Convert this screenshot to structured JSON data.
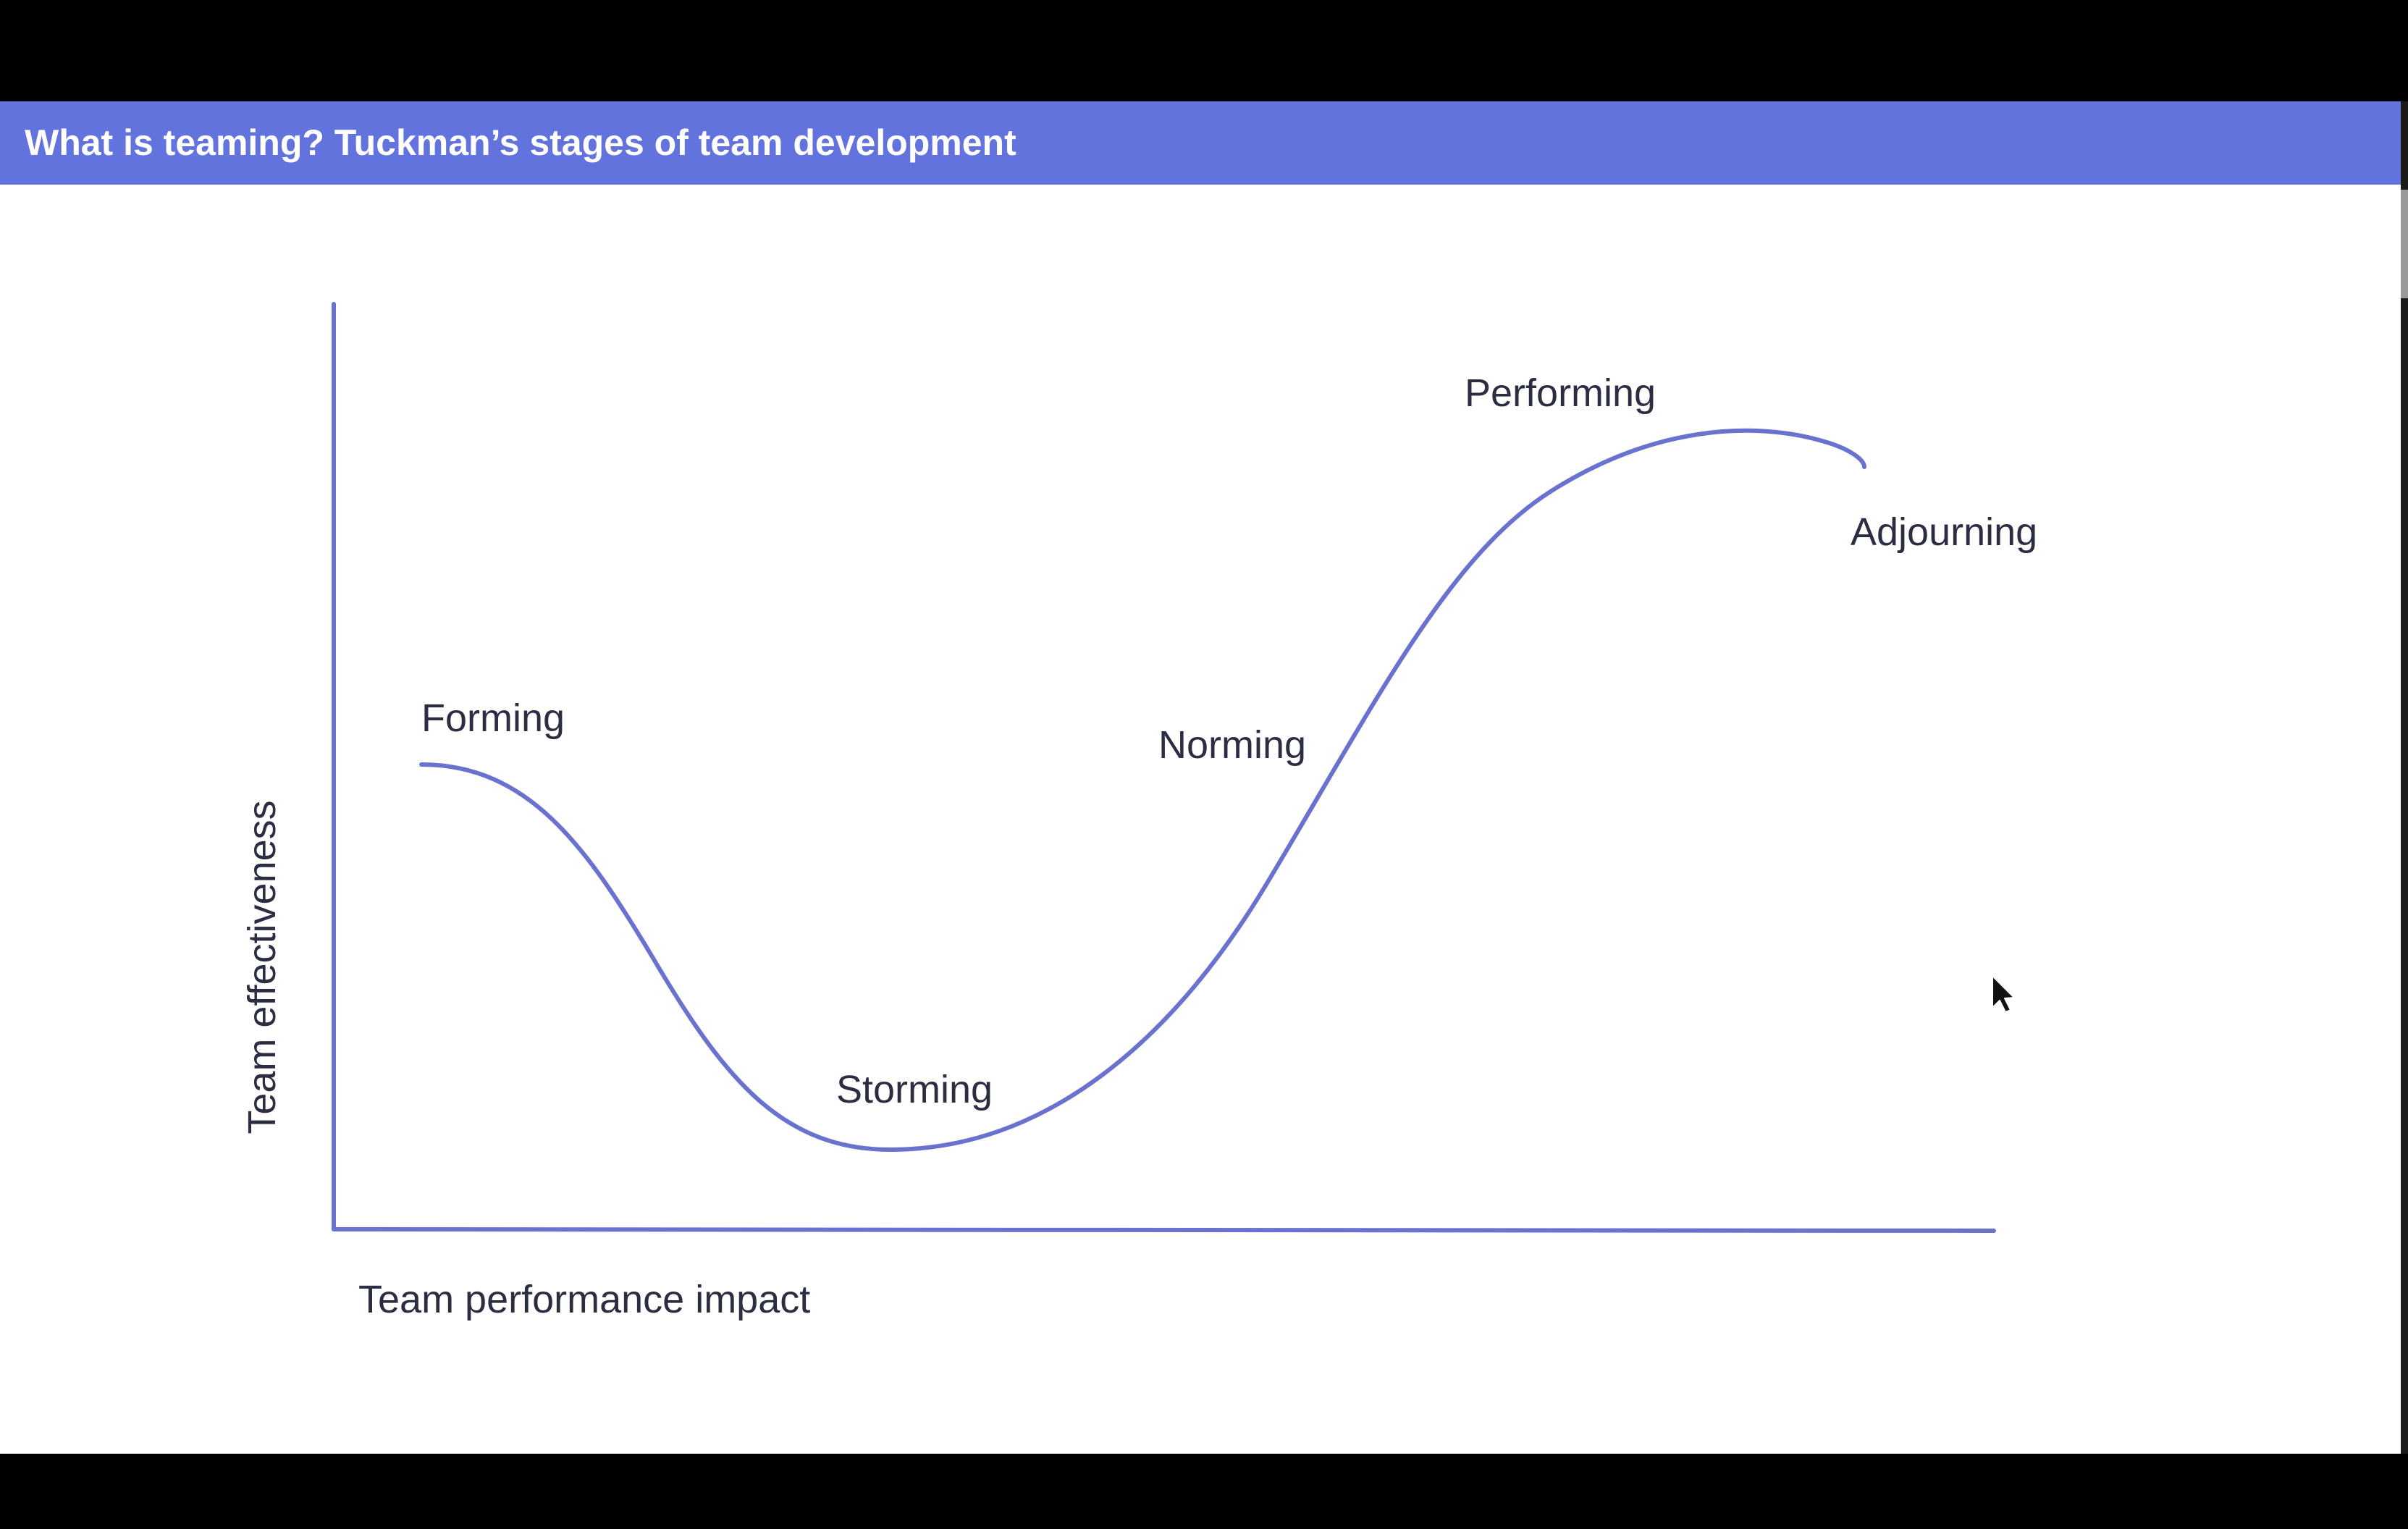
{
  "slide": {
    "title": "What is teaming? Tuckman’s stages of team development"
  },
  "diagram": {
    "y_axis_label": "Team effectiveness",
    "x_axis_label": "Team performance impact",
    "stages": [
      "Forming",
      "Storming",
      "Norming",
      "Performing",
      "Adjourning"
    ]
  },
  "colors": {
    "accent": "#6373dd",
    "curve": "#6a72d0",
    "label_text": "#2b2d42"
  },
  "cursor": "mouse-pointer-icon"
}
